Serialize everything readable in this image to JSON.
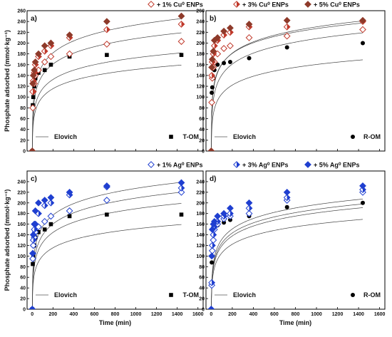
{
  "chart_data": [
    {
      "type": "scatter",
      "panel_label": "a)",
      "ylabel": "Phosphate adsorbed (mmol·kg⁻¹)",
      "xlabel": "",
      "xlim": [
        -50,
        1650
      ],
      "ylim": [
        0,
        260
      ],
      "xticks": [
        0,
        200,
        400,
        600,
        800,
        1000,
        1200,
        1400,
        1600
      ],
      "yticks": [
        0,
        20,
        40,
        60,
        80,
        100,
        120,
        140,
        160,
        180,
        200,
        220,
        240,
        260
      ],
      "ytick_labels": [
        "0",
        "20",
        "40",
        "60",
        "80",
        "100",
        "120",
        "140",
        "160",
        "180",
        "200",
        "220",
        "240",
        "260"
      ],
      "x_tick_labels_shown": false,
      "fit_label": "Elovich",
      "corner_label": "T-OM",
      "legend": [
        "+ 1% Cu⁰ ENPs",
        "+ 3% Cu⁰ ENPs",
        "+ 5% Cu⁰ ENPs"
      ],
      "series": [
        {
          "name": "T-OM",
          "marker": "square",
          "color": "#000000",
          "x": [
            0,
            5,
            10,
            20,
            30,
            60,
            120,
            180,
            360,
            720,
            1440
          ],
          "y": [
            0,
            85,
            100,
            120,
            135,
            145,
            150,
            160,
            175,
            178,
            178
          ],
          "fit": {
            "a": 20,
            "b": 0.045
          }
        },
        {
          "name": "+ 1% Cu⁰ ENPs",
          "marker": "diamond-open",
          "color": "#c0392b",
          "x": [
            0,
            5,
            10,
            20,
            30,
            60,
            120,
            180,
            360,
            720,
            1440
          ],
          "y": [
            0,
            80,
            110,
            125,
            140,
            150,
            165,
            175,
            180,
            198,
            203
          ],
          "fit": {
            "a": 25,
            "b": 0.04
          }
        },
        {
          "name": "+ 3% Cu⁰ ENPs",
          "marker": "diamond-half",
          "color": "#c0392b",
          "x": [
            0,
            5,
            10,
            20,
            30,
            60,
            120,
            180,
            360,
            720,
            1440
          ],
          "y": [
            0,
            110,
            130,
            145,
            160,
            175,
            185,
            195,
            210,
            225,
            235
          ],
          "fit": {
            "a": 35,
            "b": 0.034
          }
        },
        {
          "name": "+ 5% Cu⁰ ENPs",
          "marker": "diamond-filled",
          "color": "#8e3a2a",
          "x": [
            0,
            5,
            10,
            20,
            30,
            60,
            120,
            180,
            360,
            720,
            1440
          ],
          "y": [
            0,
            125,
            140,
            150,
            165,
            180,
            195,
            200,
            215,
            240,
            250
          ],
          "fit": {
            "a": 45,
            "b": 0.031
          }
        }
      ]
    },
    {
      "type": "scatter",
      "panel_label": "b)",
      "ylabel": "",
      "xlabel": "",
      "xlim": [
        -50,
        1650
      ],
      "ylim": [
        0,
        260
      ],
      "xticks": [
        0,
        200,
        400,
        600,
        800,
        1000,
        1200,
        1400,
        1600
      ],
      "yticks": [
        0,
        20,
        40,
        60,
        80,
        100,
        120,
        140,
        160,
        180,
        200,
        220,
        240,
        260
      ],
      "ytick_labels": [
        "0",
        "20",
        "40",
        "60",
        "80",
        "100",
        "120",
        "140",
        "160",
        "180",
        "200",
        "220",
        "240",
        "260"
      ],
      "x_tick_labels_shown": false,
      "fit_label": "Elovich",
      "corner_label": "R-OM",
      "series": [
        {
          "name": "R-OM",
          "marker": "circle",
          "color": "#000000",
          "x": [
            0,
            5,
            10,
            20,
            30,
            60,
            120,
            180,
            360,
            720,
            1440
          ],
          "y": [
            0,
            108,
            118,
            135,
            150,
            160,
            163,
            165,
            172,
            192,
            200
          ],
          "fit": {
            "a": 20,
            "b": 0.042
          }
        },
        {
          "name": "+ 1% Cu⁰ ENPs",
          "marker": "diamond-open",
          "color": "#c0392b",
          "x": [
            0,
            5,
            10,
            20,
            30,
            60,
            120,
            180,
            360,
            720,
            1440
          ],
          "y": [
            0,
            90,
            135,
            155,
            165,
            180,
            190,
            195,
            210,
            213,
            225
          ],
          "fit": {
            "a": 35,
            "b": 0.034
          }
        },
        {
          "name": "+ 3% Cu⁰ ENPs",
          "marker": "diamond-half",
          "color": "#c0392b",
          "x": [
            0,
            5,
            10,
            20,
            30,
            60,
            120,
            180,
            360,
            720,
            1440
          ],
          "y": [
            0,
            140,
            165,
            180,
            195,
            205,
            215,
            220,
            230,
            230,
            240
          ],
          "fit": {
            "a": 60,
            "b": 0.033
          }
        },
        {
          "name": "+ 5% Cu⁰ ENPs",
          "marker": "diamond-filled",
          "color": "#8e3a2a",
          "x": [
            0,
            5,
            10,
            20,
            30,
            60,
            120,
            180,
            360,
            720,
            1440
          ],
          "y": [
            0,
            155,
            170,
            185,
            205,
            210,
            222,
            228,
            235,
            242,
            242
          ],
          "fit": {
            "a": 80,
            "b": 0.035
          }
        }
      ]
    },
    {
      "type": "scatter",
      "panel_label": "c)",
      "ylabel": "Phosphate adsorbed (mmol·kg⁻¹)",
      "xlabel": "Time (min)",
      "xlim": [
        -50,
        1650
      ],
      "ylim": [
        0,
        260
      ],
      "xticks": [
        0,
        200,
        400,
        600,
        800,
        1000,
        1200,
        1400,
        1600
      ],
      "yticks": [
        0,
        20,
        40,
        60,
        80,
        100,
        120,
        140,
        160,
        180,
        200,
        220,
        240
      ],
      "ytick_labels": [
        "0",
        "20",
        "40",
        "60",
        "80",
        "100",
        "120",
        "140",
        "160",
        "180",
        "200",
        "220",
        "240"
      ],
      "x_tick_labels_shown": true,
      "fit_label": "Elovich",
      "corner_label": "T-OM",
      "legend": [
        "+ 1% Ag⁰ ENPs",
        "+ 3% Ag⁰ ENPs",
        "+ 5% Ag⁰ ENPs"
      ],
      "series": [
        {
          "name": "T-OM",
          "marker": "square",
          "color": "#000000",
          "x": [
            0,
            5,
            10,
            20,
            30,
            60,
            120,
            180,
            360,
            720,
            1440
          ],
          "y": [
            0,
            85,
            100,
            120,
            135,
            145,
            150,
            160,
            175,
            178,
            178
          ],
          "fit": {
            "a": 20,
            "b": 0.045
          }
        },
        {
          "name": "+ 1% Ag⁰ ENPs",
          "marker": "diamond-open",
          "color": "#1f3fd0",
          "x": [
            0,
            5,
            10,
            20,
            30,
            60,
            120,
            180,
            360,
            720,
            1440
          ],
          "y": [
            0,
            95,
            120,
            135,
            145,
            155,
            165,
            175,
            185,
            205,
            220
          ],
          "fit": {
            "a": 25,
            "b": 0.036
          }
        },
        {
          "name": "+ 3% Ag⁰ ENPs",
          "marker": "diamond-half",
          "color": "#1f3fd0",
          "x": [
            0,
            5,
            10,
            20,
            30,
            60,
            120,
            180,
            360,
            720,
            1440
          ],
          "y": [
            0,
            105,
            130,
            150,
            160,
            180,
            195,
            200,
            215,
            230,
            228
          ],
          "fit": {
            "a": 30,
            "b": 0.033
          }
        },
        {
          "name": "+ 5% Ag⁰ ENPs",
          "marker": "diamond-filled",
          "color": "#1f3fd0",
          "x": [
            0,
            5,
            10,
            20,
            30,
            60,
            120,
            180,
            360,
            720,
            1440
          ],
          "y": [
            0,
            105,
            140,
            160,
            185,
            200,
            205,
            210,
            220,
            232,
            238
          ],
          "fit": {
            "a": 45,
            "b": 0.032
          }
        }
      ]
    },
    {
      "type": "scatter",
      "panel_label": "d)",
      "ylabel": "",
      "xlabel": "Time (min)",
      "xlim": [
        -50,
        1650
      ],
      "ylim": [
        0,
        260
      ],
      "xticks": [
        0,
        200,
        400,
        600,
        800,
        1000,
        1200,
        1400,
        1600
      ],
      "yticks": [
        0,
        20,
        40,
        60,
        80,
        100,
        120,
        140,
        160,
        180,
        200,
        220,
        240
      ],
      "ytick_labels": [
        "0",
        "20",
        "40",
        "60",
        "80",
        "100",
        "120",
        "140",
        "160",
        "180",
        "200",
        "220",
        "240"
      ],
      "x_tick_labels_shown": true,
      "fit_label": "Elovich",
      "corner_label": "R-OM",
      "series": [
        {
          "name": "R-OM",
          "marker": "circle",
          "color": "#000000",
          "x": [
            0,
            5,
            10,
            20,
            30,
            60,
            120,
            180,
            360,
            720,
            1440
          ],
          "y": [
            0,
            88,
            110,
            130,
            150,
            158,
            163,
            168,
            175,
            192,
            200
          ],
          "fit": {
            "a": 20,
            "b": 0.042
          }
        },
        {
          "name": "+ 1% Ag⁰ ENPs",
          "marker": "diamond-open",
          "color": "#1f3fd0",
          "x": [
            0,
            5,
            10,
            20,
            30,
            60,
            120,
            180,
            360,
            720,
            1440
          ],
          "y": [
            0,
            45,
            110,
            130,
            150,
            160,
            170,
            175,
            180,
            205,
            220
          ],
          "fit": {
            "a": 22,
            "b": 0.037
          }
        },
        {
          "name": "+ 3% Ag⁰ ENPs",
          "marker": "diamond-half",
          "color": "#1f3fd0",
          "x": [
            0,
            5,
            10,
            20,
            30,
            60,
            120,
            180,
            360,
            720,
            1440
          ],
          "y": [
            0,
            50,
            120,
            140,
            155,
            165,
            175,
            180,
            190,
            210,
            225
          ],
          "fit": {
            "a": 24,
            "b": 0.036
          }
        },
        {
          "name": "+ 5% Ag⁰ ENPs",
          "marker": "diamond-filled",
          "color": "#1f3fd0",
          "x": [
            0,
            5,
            10,
            20,
            30,
            60,
            120,
            180,
            360,
            720,
            1440
          ],
          "y": [
            0,
            100,
            150,
            160,
            165,
            175,
            180,
            190,
            200,
            220,
            232
          ],
          "fit": {
            "a": 28,
            "b": 0.035
          }
        }
      ]
    }
  ]
}
